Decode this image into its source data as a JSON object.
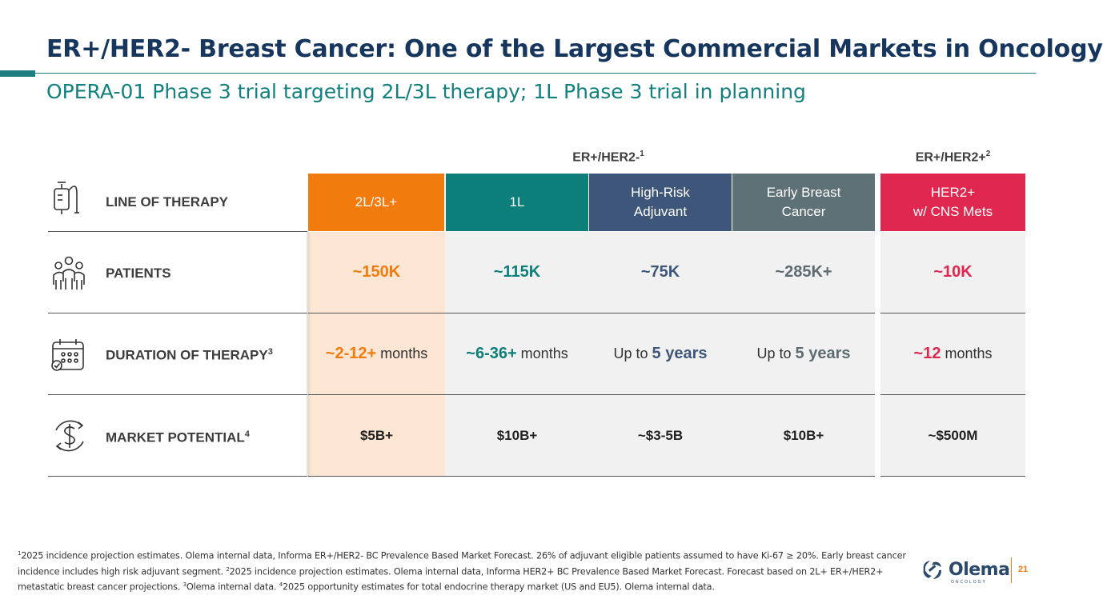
{
  "title": "ER+/HER2- Breast Cancer: One of the Largest Commercial Markets in Oncology",
  "subtitle": "OPERA-01 Phase 3 trial targeting 2L/3L therapy; 1L Phase 3 trial in planning",
  "groups": {
    "left": "ER+/HER2-",
    "left_sup": "1",
    "right": "ER+/HER2+",
    "right_sup": "2"
  },
  "rows": {
    "line_of_therapy": "LINE OF THERAPY",
    "patients": "PATIENTS",
    "duration": "DURATION OF THERAPY",
    "duration_sup": "3",
    "market": "MARKET POTENTIAL",
    "market_sup": "4"
  },
  "headers": {
    "c1": "2L/3L+",
    "c2": "1L",
    "c3_line1": "High-Risk",
    "c3_line2": "Adjuvant",
    "c4_line1": "Early Breast",
    "c4_line2": "Cancer",
    "c5_line1": "HER2+",
    "c5_line2": "w/ CNS Mets"
  },
  "patients": {
    "c1": "~150K",
    "c2": "~115K",
    "c3": "~75K",
    "c4": "~285K+",
    "c5": "~10K"
  },
  "duration": {
    "c1_value": "~2-12+",
    "c1_unit": " months",
    "c2_value": "~6-36+",
    "c2_unit": " months",
    "c3_prefix": "Up to ",
    "c3_value": "5 years",
    "c4_prefix": "Up to ",
    "c4_value": "5 years",
    "c5_value": "~12",
    "c5_unit": " months"
  },
  "market": {
    "c1": "$5B+",
    "c2": "$10B+",
    "c3": "~$3-5B",
    "c4": "$10B+",
    "c5": "~$500M"
  },
  "footnote": {
    "s1": "1",
    "t1": "2025 incidence projection estimates. Olema internal data, Informa ER+/HER2- BC Prevalence Based Market Forecast. 26% of adjuvant eligible patients assumed to have Ki-67 ≥ 20%. Early breast cancer incidence includes high risk adjuvant segment. ",
    "s2": "2",
    "t2": "2025 incidence projection estimates. Olema internal data, Informa HER2+ BC Prevalence Based Market Forecast. Forecast based on 2L+ ER+/HER2+ metastatic breast cancer projections. ",
    "s3": "3",
    "t3": "Olema internal data. ",
    "s4": "4",
    "t4": "2025 opportunity estimates for total endocrine therapy market (US and EU5). Olema internal data."
  },
  "logo": {
    "name": "Olema",
    "sub": "ONCOLOGY"
  },
  "page_number": "21",
  "colors": {
    "orange": "#f27b0e",
    "teal": "#0c7f7a",
    "navy": "#3e5679",
    "slate": "#5e7177",
    "red": "#e0274f",
    "title": "#17365d"
  }
}
